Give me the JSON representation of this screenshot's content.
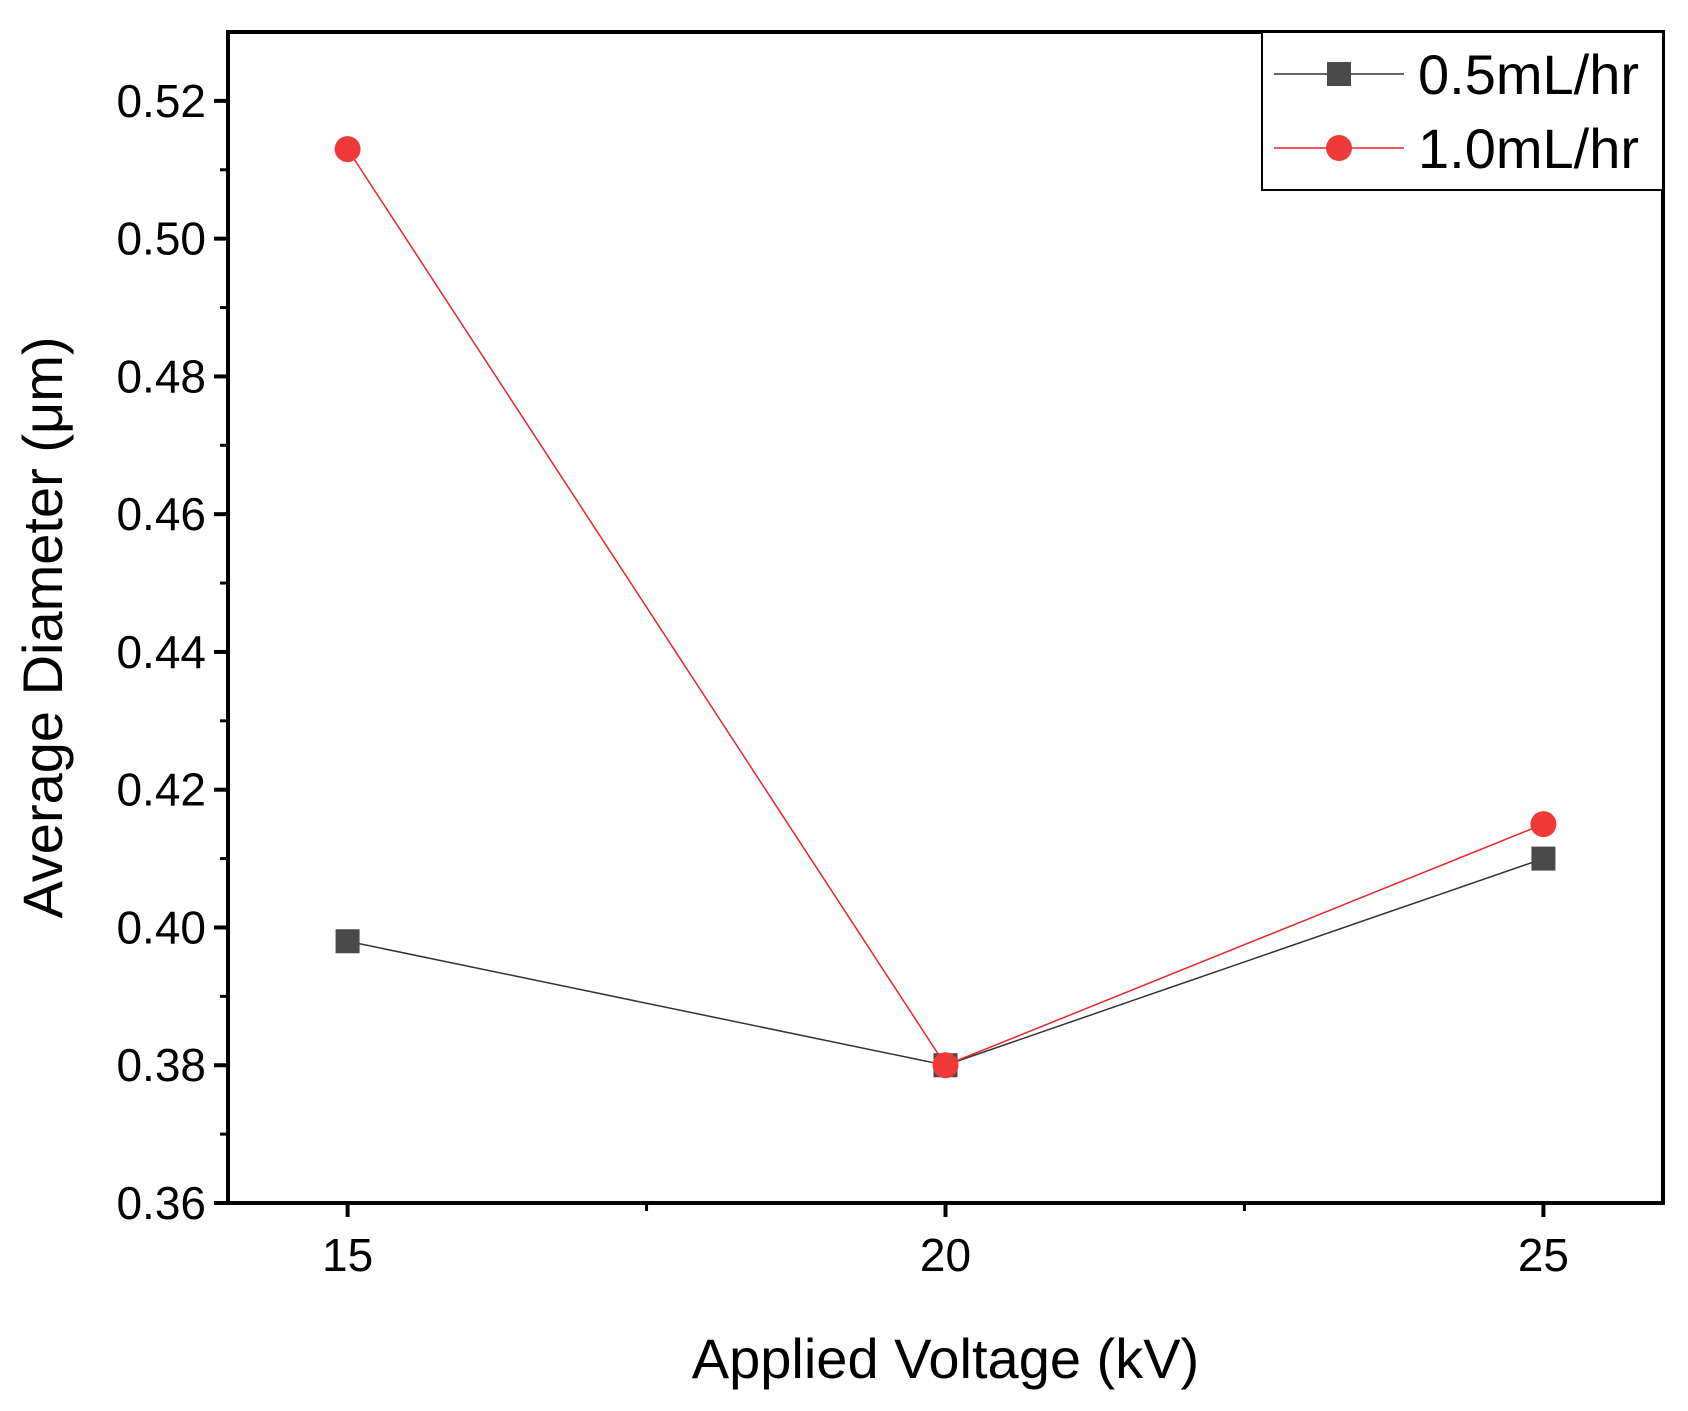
{
  "chart_data": {
    "type": "line",
    "title": "",
    "xlabel": "Applied Voltage (kV)",
    "ylabel": "Average Diameter (μm)",
    "x": [
      15,
      20,
      25
    ],
    "xlim": [
      14,
      26
    ],
    "ylim": [
      0.36,
      0.53
    ],
    "xticks": [
      15,
      20,
      25
    ],
    "xtick_labels": [
      "15",
      "20",
      "25"
    ],
    "yticks": [
      0.36,
      0.38,
      0.4,
      0.42,
      0.44,
      0.46,
      0.48,
      0.5,
      0.52
    ],
    "ytick_labels": [
      "0.36",
      "0.38",
      "0.40",
      "0.42",
      "0.44",
      "0.46",
      "0.48",
      "0.50",
      "0.52"
    ],
    "grid": false,
    "legend_position": "top-right",
    "series": [
      {
        "name": "0.5mL/hr",
        "values": [
          0.398,
          0.38,
          0.41
        ],
        "color": "#4a4a4a",
        "line_color": "#333333",
        "marker": "square"
      },
      {
        "name": "1.0mL/hr",
        "values": [
          0.513,
          0.38,
          0.415
        ],
        "color": "#f03a3a",
        "line_color": "#e8262a",
        "marker": "circle"
      }
    ]
  }
}
